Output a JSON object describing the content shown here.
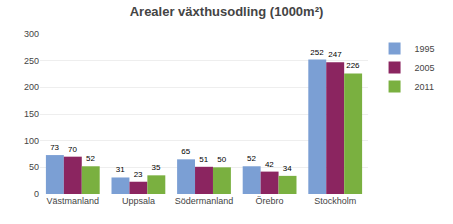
{
  "chart_data": {
    "type": "bar",
    "title": "Arealer växthusodling (1000m²)",
    "categories": [
      "Västmanland",
      "Uppsala",
      "Södermanland",
      "Örebro",
      "Stockholm"
    ],
    "series": [
      {
        "name": "1995",
        "color": "#7b9fd4",
        "values": [
          73,
          31,
          65,
          52,
          252
        ]
      },
      {
        "name": "2005",
        "color": "#8b2560",
        "values": [
          70,
          23,
          51,
          42,
          247
        ]
      },
      {
        "name": "2011",
        "color": "#7ab040",
        "values": [
          52,
          35,
          50,
          34,
          226
        ]
      }
    ],
    "ylim": [
      0,
      300
    ],
    "yticks": [
      0,
      50,
      100,
      150,
      200,
      250,
      300
    ],
    "grid": true,
    "legend": "upper right",
    "data_labels": true
  }
}
